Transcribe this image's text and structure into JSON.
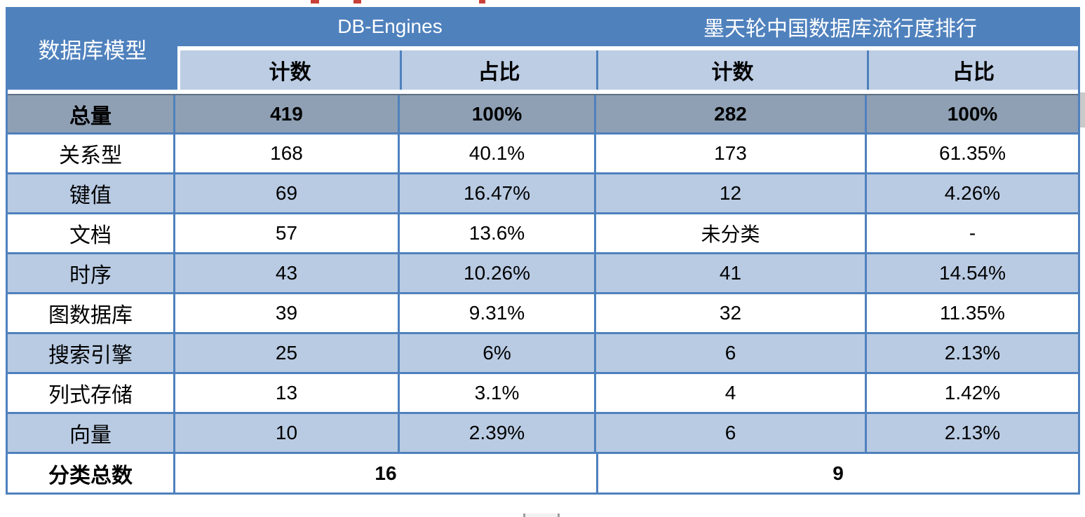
{
  "colors": {
    "header_blue": "#4F81BD",
    "subheader_blue": "#BCCDE4",
    "row_alt_blue": "#B9CBE3",
    "total_row_gray": "#8FA0B4",
    "grid_border_blue": "#4F81BD",
    "artifact_red": "#C8423A"
  },
  "table": {
    "corner_header": "数据库模型",
    "column_groups": [
      {
        "title": "DB-Engines",
        "columns": [
          "计数",
          "占比"
        ]
      },
      {
        "title": "墨天轮中国数据库流行度排行",
        "columns": [
          "计数",
          "占比"
        ]
      }
    ],
    "total_row": {
      "label": "总量",
      "values": [
        "419",
        "100%",
        "282",
        "100%"
      ]
    },
    "rows": [
      {
        "label": "关系型",
        "values": [
          "168",
          "40.1%",
          "173",
          "61.35%"
        ]
      },
      {
        "label": "键值",
        "values": [
          "69",
          "16.47%",
          "12",
          "4.26%"
        ]
      },
      {
        "label": "文档",
        "values": [
          "57",
          "13.6%",
          "未分类",
          "-"
        ]
      },
      {
        "label": "时序",
        "values": [
          "43",
          "10.26%",
          "41",
          "14.54%"
        ]
      },
      {
        "label": "图数据库",
        "values": [
          "39",
          "9.31%",
          "32",
          "11.35%"
        ]
      },
      {
        "label": "搜索引擎",
        "values": [
          "25",
          "6%",
          "6",
          "2.13%"
        ]
      },
      {
        "label": "列式存储",
        "values": [
          "13",
          "3.1%",
          "4",
          "1.42%"
        ]
      },
      {
        "label": "向量",
        "values": [
          "10",
          "2.39%",
          "6",
          "2.13%"
        ]
      }
    ],
    "summary_row": {
      "label": "分类总数",
      "values": [
        "16",
        "9"
      ]
    }
  }
}
